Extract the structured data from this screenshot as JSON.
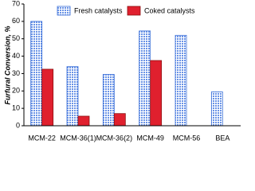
{
  "chart_data": {
    "type": "bar",
    "y_label": "Furfural Conversion, %",
    "categories": [
      "MCM-22",
      "MCM-36(1)",
      "MCM-36(2)",
      "MCM-49",
      "MCM-56",
      "BEA"
    ],
    "series": [
      {
        "name": "Fresh catalysts",
        "color": "#3a6fd8",
        "values": [
          60,
          34,
          29.5,
          54.5,
          52,
          19.5
        ]
      },
      {
        "name": "Coked catalysts",
        "color": "#e0202e",
        "values": [
          32.5,
          5.5,
          7,
          37.5,
          null,
          null
        ]
      }
    ],
    "ylim": [
      0,
      70
    ],
    "yticks": [
      0,
      10,
      20,
      30,
      40,
      50,
      60,
      70
    ],
    "grid": false,
    "legend": "top"
  }
}
